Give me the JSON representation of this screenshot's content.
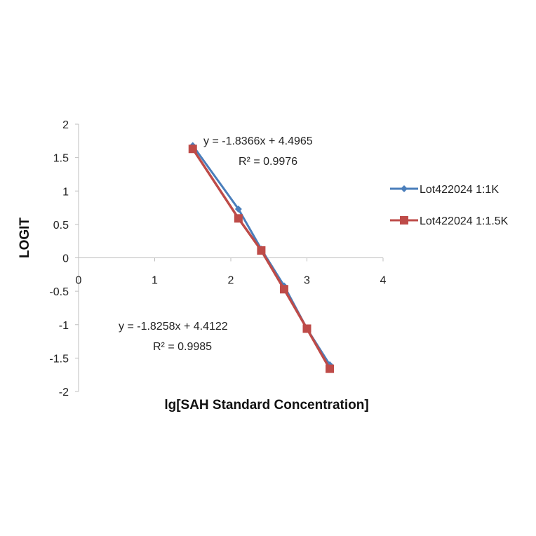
{
  "chart_data": {
    "type": "line",
    "xlabel": "lg[SAH Standard Concentration]",
    "ylabel": "LOGIT",
    "xlim": [
      0,
      4
    ],
    "ylim": [
      -2,
      2
    ],
    "x_ticks": [
      "0",
      "1",
      "2",
      "3",
      "4"
    ],
    "y_ticks": [
      "2",
      "1.5",
      "1",
      "0.5",
      "0",
      "-0.5",
      "-1",
      "-1.5",
      "-2"
    ],
    "grid": false,
    "legend_position": "right",
    "series": [
      {
        "name": "Lot422024 1:1K",
        "color": "#4a7ebb",
        "marker": "diamond",
        "points": [
          [
            1.5,
            1.68
          ],
          [
            2.1,
            0.73
          ],
          [
            2.4,
            0.13
          ],
          [
            2.7,
            -0.42
          ],
          [
            3.0,
            -1.06
          ],
          [
            3.3,
            -1.6
          ]
        ]
      },
      {
        "name": "Lot422024 1:1.5K",
        "color": "#be4b48",
        "marker": "square",
        "points": [
          [
            1.5,
            1.63
          ],
          [
            2.1,
            0.59
          ],
          [
            2.4,
            0.11
          ],
          [
            2.7,
            -0.47
          ],
          [
            3.0,
            -1.06
          ],
          [
            3.3,
            -1.66
          ]
        ]
      }
    ],
    "annotations": [
      {
        "equation": "y = -1.8366x + 4.4965",
        "r_squared": "R² = 0.9976"
      },
      {
        "equation": "y = -1.8258x + 4.4122",
        "r_squared": "R² = 0.9985"
      }
    ]
  }
}
